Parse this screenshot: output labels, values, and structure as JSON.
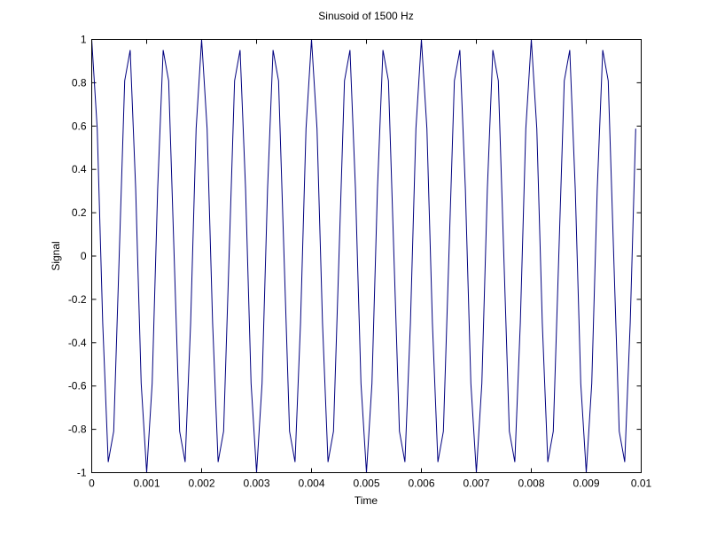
{
  "chart_data": {
    "type": "line",
    "title": "Sinusoid of 1500 Hz",
    "xlabel": "Time",
    "ylabel": "Signal",
    "xlim": [
      0,
      0.01
    ],
    "ylim": [
      -1,
      1
    ],
    "grid": false,
    "x_start": 0,
    "x_step": 0.0001,
    "xticks": [
      "0",
      "0.001",
      "0.002",
      "0.003",
      "0.004",
      "0.005",
      "0.006",
      "0.007",
      "0.008",
      "0.009",
      "0.01"
    ],
    "xtick_values": [
      0,
      0.001,
      0.002,
      0.003,
      0.004,
      0.005,
      0.006,
      0.007,
      0.008,
      0.009,
      0.01
    ],
    "yticks": [
      "-1",
      "-0.8",
      "-0.6",
      "-0.4",
      "-0.2",
      "0",
      "0.2",
      "0.4",
      "0.6",
      "0.8",
      "1"
    ],
    "ytick_values": [
      -1,
      -0.8,
      -0.6,
      -0.4,
      -0.2,
      0,
      0.2,
      0.4,
      0.6,
      0.8,
      1
    ],
    "series": [
      {
        "name": "Signal",
        "color": "#00007f",
        "values": [
          1,
          0.588,
          -0.309,
          -0.951,
          -0.809,
          0,
          0.809,
          0.951,
          0.309,
          -0.588,
          -1,
          -0.588,
          0.309,
          0.951,
          0.809,
          0,
          -0.809,
          -0.951,
          -0.309,
          0.588,
          1,
          0.588,
          -0.309,
          -0.951,
          -0.809,
          0,
          0.809,
          0.951,
          0.309,
          -0.588,
          -1,
          -0.588,
          0.309,
          0.951,
          0.809,
          0,
          -0.809,
          -0.951,
          -0.309,
          0.588,
          1,
          0.588,
          -0.309,
          -0.951,
          -0.809,
          0,
          0.809,
          0.951,
          0.309,
          -0.588,
          -1,
          -0.588,
          0.309,
          0.951,
          0.809,
          0,
          -0.809,
          -0.951,
          -0.309,
          0.588,
          1,
          0.588,
          -0.309,
          -0.951,
          -0.809,
          0,
          0.809,
          0.951,
          0.309,
          -0.588,
          -1,
          -0.588,
          0.309,
          0.951,
          0.809,
          0,
          -0.809,
          -0.951,
          -0.309,
          0.588,
          1,
          0.588,
          -0.309,
          -0.951,
          -0.809,
          0,
          0.809,
          0.951,
          0.309,
          -0.588,
          -1,
          -0.588,
          0.309,
          0.951,
          0.809,
          0,
          -0.809,
          -0.951,
          -0.309,
          0.588
        ]
      }
    ]
  }
}
